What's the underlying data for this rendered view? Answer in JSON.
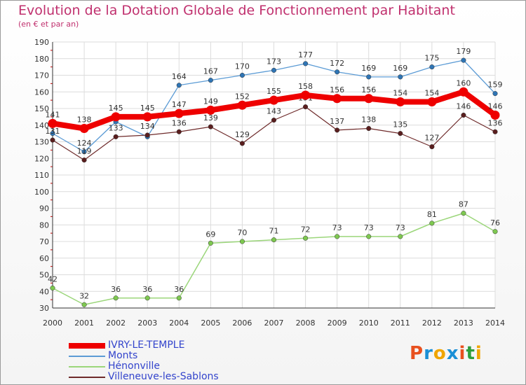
{
  "title": "Evolution de la Dotation Globale de Fonctionnement par Habitant",
  "subtitle": "(en € et par an)",
  "logo": {
    "text": "Proxiti",
    "colors": [
      "#e8501e",
      "#1a8fd6",
      "#f0a500",
      "#1a8fd6",
      "#e8501e",
      "#2e9e3b",
      "#f0a500"
    ]
  },
  "chart_data": {
    "type": "line",
    "x": [
      2000,
      2001,
      2002,
      2003,
      2004,
      2005,
      2006,
      2007,
      2008,
      2009,
      2010,
      2011,
      2012,
      2013,
      2014
    ],
    "ylim": [
      30,
      190
    ],
    "yticks": [
      30,
      40,
      50,
      60,
      70,
      80,
      90,
      100,
      110,
      120,
      130,
      140,
      150,
      160,
      170,
      180,
      190
    ],
    "grid": true,
    "legend_position": "bottom-left",
    "series": [
      {
        "name": "Monts",
        "color": "#5b9bd5",
        "marker": "#2f75b5",
        "width": 1.3,
        "values": [
          135,
          124,
          142,
          133,
          164,
          167,
          170,
          173,
          177,
          172,
          169,
          169,
          175,
          179,
          159
        ],
        "labels": [
          "",
          "124",
          "",
          "",
          "164",
          "167",
          "170",
          "173",
          "177",
          "172",
          "169",
          "169",
          "175",
          "179",
          "159"
        ]
      },
      {
        "name": "Hénonville",
        "color": "#9bd67a",
        "marker": "#7ec850",
        "width": 1.5,
        "values": [
          42,
          32,
          36,
          36,
          36,
          69,
          70,
          71,
          72,
          73,
          73,
          73,
          81,
          87,
          76
        ],
        "labels": [
          "42",
          "32",
          "36",
          "36",
          "36",
          "69",
          "70",
          "71",
          "72",
          "73",
          "73",
          "73",
          "81",
          "87",
          "76"
        ]
      },
      {
        "name": "Villeneuve-les-Sablons",
        "color": "#6e2a2a",
        "marker": "#5a1e1e",
        "width": 1.2,
        "values": [
          131,
          119,
          133,
          134,
          136,
          139,
          129,
          143,
          151,
          137,
          138,
          135,
          127,
          146,
          136
        ],
        "labels": [
          "131",
          "119",
          "133",
          "134",
          "136",
          "139",
          "129",
          "143",
          "151",
          "137",
          "138",
          "135",
          "127",
          "146",
          "136"
        ]
      },
      {
        "name": "IVRY-LE-TEMPLE",
        "color": "#ee0000",
        "marker": "#ee0000",
        "width": 8,
        "values": [
          141,
          138,
          145,
          145,
          147,
          149,
          152,
          155,
          158,
          156,
          156,
          154,
          154,
          160,
          146
        ],
        "labels": [
          "141",
          "138",
          "145",
          "145",
          "147",
          "149",
          "152",
          "155",
          "158",
          "156",
          "156",
          "154",
          "154",
          "160",
          "146"
        ]
      }
    ],
    "legend": [
      {
        "name": "IVRY-LE-TEMPLE",
        "color": "#ee0000",
        "text_color": "#3344cc",
        "thick": true
      },
      {
        "name": "Monts",
        "color": "#5b9bd5",
        "text_color": "#3344cc",
        "thick": false
      },
      {
        "name": "Hénonville",
        "color": "#9bd67a",
        "text_color": "#3344cc",
        "thick": false
      },
      {
        "name": "Villeneuve-les-Sablons",
        "color": "#6e2a2a",
        "text_color": "#3344cc",
        "thick": false
      }
    ]
  }
}
